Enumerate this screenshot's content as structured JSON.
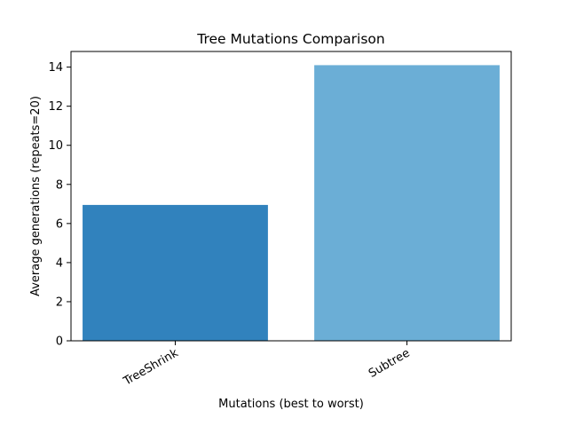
{
  "chart_data": {
    "type": "bar",
    "title": "Tree Mutations Comparison",
    "xlabel": "Mutations (best to worst)",
    "ylabel": "Average generations (repeats=20)",
    "categories": [
      "TreeShrink",
      "Subtree"
    ],
    "values": [
      6.95,
      14.1
    ],
    "colors": [
      "#3182bd",
      "#6baed6"
    ],
    "ylim": [
      0,
      14.8
    ],
    "yticks": [
      0,
      2,
      4,
      6,
      8,
      10,
      12,
      14
    ],
    "grid": false,
    "legend": "none"
  }
}
